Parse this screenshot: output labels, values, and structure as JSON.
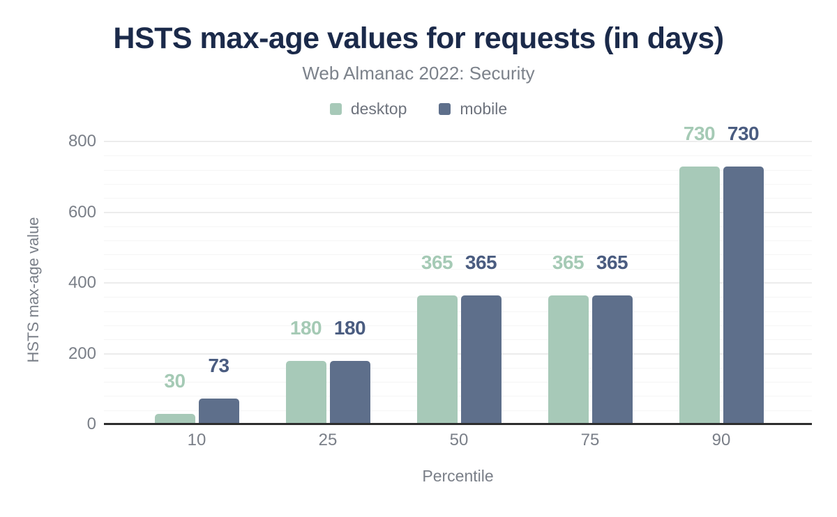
{
  "chart_data": {
    "type": "bar",
    "title": "HSTS max-age values for requests (in days)",
    "subtitle": "Web Almanac 2022: Security",
    "xlabel": "Percentile",
    "ylabel": "HSTS max-age value",
    "categories": [
      "10",
      "25",
      "50",
      "75",
      "90"
    ],
    "series": [
      {
        "name": "desktop",
        "color": "#a7c9b8",
        "label_color": "#a5cab5",
        "values": [
          30,
          180,
          365,
          365,
          730
        ]
      },
      {
        "name": "mobile",
        "color": "#5e6f8b",
        "label_color": "#4a5c80",
        "values": [
          73,
          180,
          365,
          365,
          730
        ]
      }
    ],
    "ylim": [
      0,
      800
    ],
    "yticks": [
      0,
      200,
      400,
      600,
      800
    ],
    "minor_gridline_step": 40,
    "grid": true,
    "legend_position": "top"
  },
  "colors": {
    "title": "#1b2a4a",
    "subtitle": "#7c828b",
    "axis_text": "#7a7f88",
    "legend_text": "#6e737d",
    "axis_line": "#2d2d2d",
    "gridline_major": "#ececec",
    "gridline_minor": "#f5f5f5",
    "background": "#ffffff"
  }
}
